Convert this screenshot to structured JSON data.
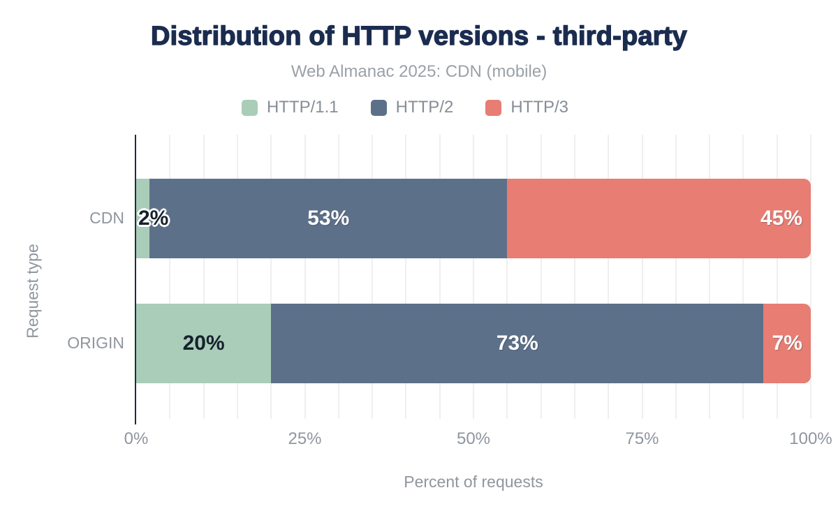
{
  "chart_data": {
    "type": "bar",
    "orientation": "horizontal-stacked",
    "title": "Distribution of HTTP versions - third-party",
    "subtitle": "Web Almanac 2025: CDN (mobile)",
    "categories": [
      "CDN",
      "ORIGIN"
    ],
    "series": [
      {
        "name": "HTTP/1.1",
        "color": "#a9cdb8",
        "values": [
          2,
          20
        ],
        "labels": [
          "2%",
          "20%"
        ],
        "label_align": [
          "left",
          "center"
        ],
        "label_theme": [
          "dark-outline",
          "dark"
        ]
      },
      {
        "name": "HTTP/2",
        "color": "#5d7089",
        "values": [
          53,
          73
        ],
        "labels": [
          "53%",
          "73%"
        ],
        "label_align": [
          "center",
          "center"
        ],
        "label_theme": [
          "light",
          "light"
        ]
      },
      {
        "name": "HTTP/3",
        "color": "#e87d73",
        "values": [
          45,
          7
        ],
        "labels": [
          "45%",
          "7%"
        ],
        "label_align": [
          "right",
          "center"
        ],
        "label_theme": [
          "light",
          "light"
        ]
      }
    ],
    "xlabel": "Percent of requests",
    "ylabel": "Request type",
    "xlim": [
      0,
      100
    ],
    "x_ticks": [
      {
        "value": 0,
        "label": "0%"
      },
      {
        "value": 25,
        "label": "25%"
      },
      {
        "value": 50,
        "label": "50%"
      },
      {
        "value": 75,
        "label": "75%"
      },
      {
        "value": 100,
        "label": "100%"
      }
    ],
    "gridline_step": 5,
    "grid": true,
    "legend_position": "top"
  }
}
